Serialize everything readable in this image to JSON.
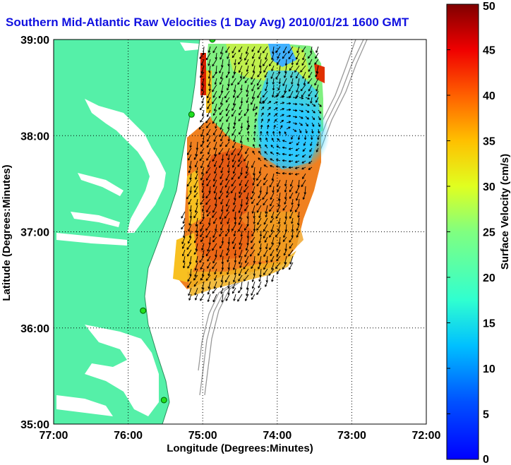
{
  "title": "Southern Mid-Atlantic Raw Velocities (1 Day Avg) 2010/01/21 1600 GMT",
  "map": {
    "xlabel": "Longitude (Degrees:Minutes)",
    "ylabel": "Latitude (Degrees:Minutes)",
    "lon_ticks": [
      "77:00",
      "76:00",
      "75:00",
      "74:00",
      "73:00",
      "72:00"
    ],
    "lat_ticks": [
      "39:00",
      "38:00",
      "37:00",
      "36:00",
      "35:00"
    ],
    "lon_range": [
      -77,
      -72
    ],
    "lat_range": [
      35,
      39
    ],
    "grid": true,
    "land_color": "#55f0a8",
    "stations": [
      {
        "lon": -74.87,
        "lat": 39.0
      },
      {
        "lon": -75.15,
        "lat": 38.22
      },
      {
        "lon": -75.8,
        "lat": 36.18
      },
      {
        "lon": -75.52,
        "lat": 35.25
      }
    ]
  },
  "colorbar": {
    "label": "Surface Velocity (cm/s)",
    "ticks": [
      "0",
      "5",
      "10",
      "15",
      "20",
      "25",
      "30",
      "35",
      "40",
      "45",
      "50"
    ],
    "min": 0,
    "max": 50,
    "colormap": "jet"
  }
}
